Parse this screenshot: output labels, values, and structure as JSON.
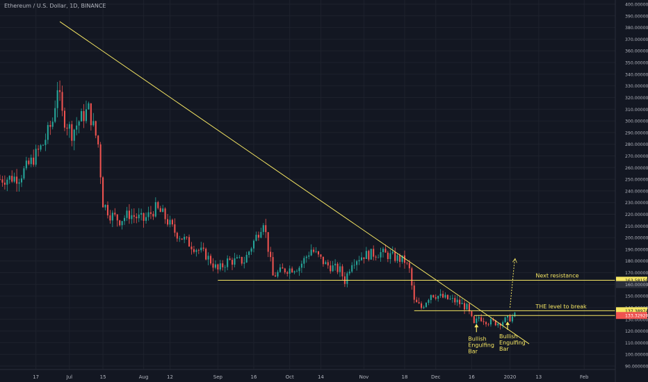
{
  "header": {
    "title": "Ethereum / U.S. Dollar, 1D, BINANCE"
  },
  "colors": {
    "background": "#131722",
    "grid": "#1e222d",
    "axis_text": "#b2b5be",
    "bull": "#26a69a",
    "bear": "#ef5350",
    "annotation": "#f5e663",
    "price_tag_red": "#ef5350"
  },
  "chart_data": {
    "type": "candlestick",
    "title": "Ethereum / U.S. Dollar, 1D, BINANCE",
    "ylim": [
      90,
      400
    ],
    "y_ticks": [
      "90.000000",
      "100.000000",
      "110.000000",
      "120.000000",
      "130.000000",
      "140.000000",
      "150.000000",
      "160.000000",
      "170.000000",
      "180.000000",
      "190.000000",
      "200.000000",
      "210.000000",
      "220.000000",
      "230.000000",
      "240.000000",
      "250.000000",
      "260.000000",
      "270.000000",
      "280.000000",
      "290.000000",
      "300.000000",
      "310.000000",
      "320.000000",
      "330.000000",
      "340.000000",
      "350.000000",
      "360.000000",
      "370.000000",
      "380.000000",
      "390.000000",
      "400.000000"
    ],
    "x_ticks": [
      {
        "label": "17",
        "date": "2019-06-17"
      },
      {
        "label": "Jul",
        "date": "2019-07-01"
      },
      {
        "label": "15",
        "date": "2019-07-15"
      },
      {
        "label": "Aug",
        "date": "2019-08-01"
      },
      {
        "label": "12",
        "date": "2019-08-12"
      },
      {
        "label": "Sep",
        "date": "2019-09-01"
      },
      {
        "label": "16",
        "date": "2019-09-16"
      },
      {
        "label": "Oct",
        "date": "2019-10-01"
      },
      {
        "label": "14",
        "date": "2019-10-14"
      },
      {
        "label": "Nov",
        "date": "2019-11-01"
      },
      {
        "label": "18",
        "date": "2019-11-18"
      },
      {
        "label": "Dec",
        "date": "2019-12-01"
      },
      {
        "label": "16",
        "date": "2019-12-16"
      },
      {
        "label": "2020",
        "date": "2020-01-01"
      },
      {
        "label": "13",
        "date": "2020-01-13"
      },
      {
        "label": "Feb",
        "date": "2020-02-01"
      }
    ],
    "x_range": [
      "2019-06-02",
      "2020-02-14"
    ],
    "price_path": [
      [
        "2019-06-02",
        250
      ],
      [
        "2019-06-10",
        252
      ],
      [
        "2019-06-15",
        265
      ],
      [
        "2019-06-20",
        280
      ],
      [
        "2019-06-24",
        300
      ],
      [
        "2019-06-26",
        330
      ],
      [
        "2019-06-28",
        305
      ],
      [
        "2019-07-02",
        290
      ],
      [
        "2019-07-05",
        300
      ],
      [
        "2019-07-09",
        310
      ],
      [
        "2019-07-13",
        280
      ],
      [
        "2019-07-15",
        230
      ],
      [
        "2019-07-18",
        220
      ],
      [
        "2019-07-22",
        215
      ],
      [
        "2019-07-26",
        220
      ],
      [
        "2019-08-01",
        215
      ],
      [
        "2019-08-06",
        225
      ],
      [
        "2019-08-09",
        220
      ],
      [
        "2019-08-14",
        205
      ],
      [
        "2019-08-20",
        195
      ],
      [
        "2019-08-27",
        185
      ],
      [
        "2019-09-01",
        172
      ],
      [
        "2019-09-05",
        180
      ],
      [
        "2019-09-12",
        180
      ],
      [
        "2019-09-18",
        205
      ],
      [
        "2019-09-20",
        215
      ],
      [
        "2019-09-24",
        167
      ],
      [
        "2019-09-28",
        172
      ],
      [
        "2019-10-05",
        175
      ],
      [
        "2019-10-10",
        190
      ],
      [
        "2019-10-16",
        177
      ],
      [
        "2019-10-22",
        172
      ],
      [
        "2019-10-24",
        163
      ],
      [
        "2019-10-27",
        180
      ],
      [
        "2019-11-01",
        185
      ],
      [
        "2019-11-08",
        187
      ],
      [
        "2019-11-14",
        183
      ],
      [
        "2019-11-18",
        180
      ],
      [
        "2019-11-20",
        172
      ],
      [
        "2019-11-22",
        145
      ],
      [
        "2019-11-25",
        140
      ],
      [
        "2019-11-29",
        152
      ],
      [
        "2019-12-05",
        148
      ],
      [
        "2019-12-10",
        145
      ],
      [
        "2019-12-14",
        140
      ],
      [
        "2019-12-17",
        125
      ],
      [
        "2019-12-19",
        132
      ],
      [
        "2019-12-23",
        128
      ],
      [
        "2019-12-27",
        127
      ],
      [
        "2019-12-31",
        130
      ],
      [
        "2020-01-03",
        133
      ]
    ],
    "annotations": {
      "trendline": {
        "from": [
          "2019-06-27",
          385
        ],
        "to": [
          "2020-01-09",
          109
        ]
      },
      "support_line": {
        "from": [
          "2019-09-01",
          163.5
        ],
        "to": [
          "2020-02-14",
          163.5
        ]
      },
      "break_line": {
        "from": [
          "2019-11-22",
          137.4
        ],
        "to": [
          "2020-02-14",
          137.4
        ]
      },
      "current_line": {
        "from": [
          "2019-12-17",
          133.3
        ],
        "to": [
          "2020-02-14",
          133.3
        ]
      },
      "projection": {
        "from": [
          "2020-01-01",
          140
        ],
        "to": [
          "2020-01-03",
          182
        ]
      },
      "labels": [
        {
          "text": "Next resistance",
          "date": "2020-01-03",
          "price": 166
        },
        {
          "text": "THE level to break",
          "date": "2020-01-03",
          "price": 139.5
        }
      ],
      "engulfing": [
        {
          "lines": [
            "Bullish",
            "Engulfing",
            "Bar"
          ],
          "date": "2019-12-18",
          "price": 119
        },
        {
          "lines": [
            "Bullish",
            "Engulfing",
            "Bar"
          ],
          "date": "2019-12-31",
          "price": 121
        }
      ]
    },
    "price_tags": [
      {
        "text": "163.581598",
        "price": 163.5,
        "style": "yellow"
      },
      {
        "text": "160.000000",
        "price": 159.8,
        "style": "plain"
      },
      {
        "text": "137.389742",
        "price": 137.4,
        "style": "yellow"
      },
      {
        "text": "133.329209",
        "price": 133.3,
        "style": "red"
      }
    ]
  }
}
